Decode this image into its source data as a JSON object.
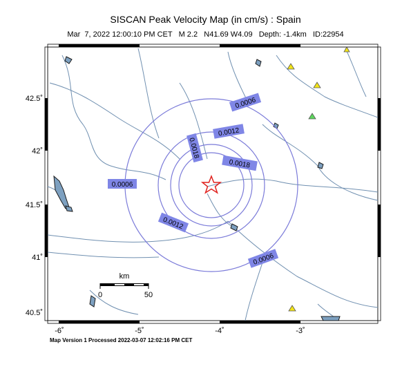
{
  "header": {
    "title": "SISCAN Peak Velocity Map (in cm/s) : Spain",
    "subtitle": "Mar  7, 2022 12:00:10 PM CET   M 2.2   N41.69 W4.09   Depth: -1.4km   ID:22954"
  },
  "footer": {
    "version_text": "Map Version 1 Processed 2022-03-07 12:02:16 PM CET"
  },
  "map": {
    "lon_ticks": [
      "-6˚",
      "-5˚",
      "-4˚",
      "-3˚"
    ],
    "lat_ticks": [
      "42.5˚",
      "42˚",
      "41.5˚",
      "41˚",
      "40.5˚"
    ],
    "contour_labels": [
      "0.0006",
      "0.0012",
      "0.0018",
      "0.0018",
      "0.0006",
      "0.0012",
      "0.0006"
    ],
    "scale_bar": {
      "unit": "km",
      "start": "0",
      "end": "50"
    },
    "colors": {
      "contour": "#7b7bd9",
      "label_bg": "#7f86e6",
      "river": "#6f8fb0",
      "epicenter": "#e0221f",
      "station_yellow": "#f2e417",
      "station_green": "#5cd65c"
    }
  }
}
